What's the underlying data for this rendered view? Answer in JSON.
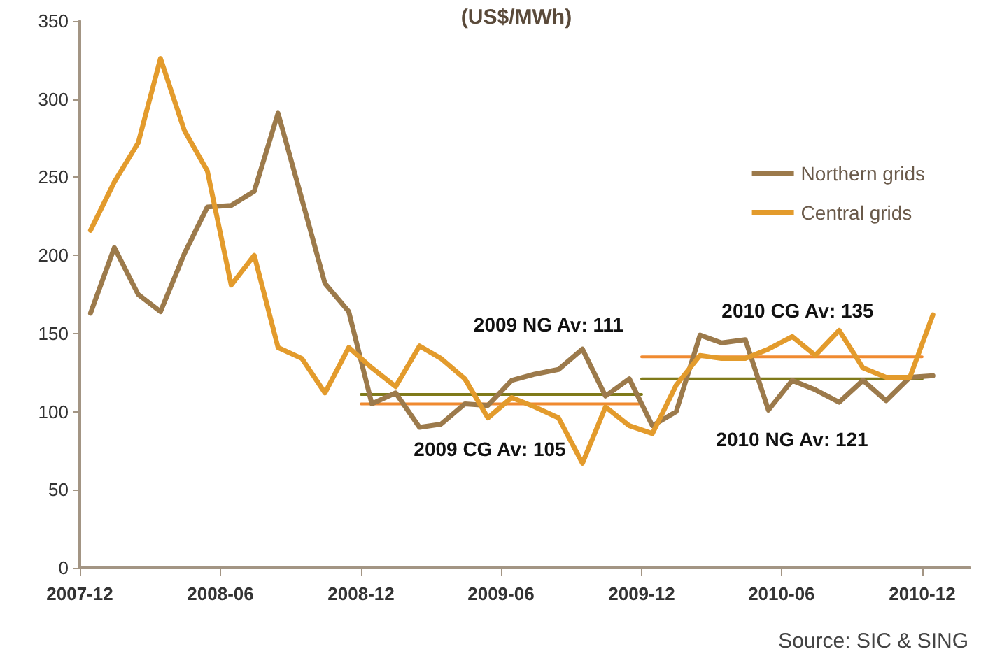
{
  "chart_data": {
    "type": "line",
    "title": "(US$/MWh)",
    "x": [
      "2007-12-15",
      "2008-01-15",
      "2008-02-15",
      "2008-03-15",
      "2008-04-15",
      "2008-05-15",
      "2008-06-15",
      "2008-07-15",
      "2008-08-15",
      "2008-09-15",
      "2008-10-15",
      "2008-11-15",
      "2008-12-15",
      "2009-01-15",
      "2009-02-15",
      "2009-03-15",
      "2009-04-15",
      "2009-05-15",
      "2009-06-15",
      "2009-07-15",
      "2009-08-15",
      "2009-09-15",
      "2009-10-15",
      "2009-11-15",
      "2009-12-15",
      "2010-01-15",
      "2010-02-15",
      "2010-03-15",
      "2010-04-15",
      "2010-05-15",
      "2010-06-15",
      "2010-07-15",
      "2010-08-15",
      "2010-09-15",
      "2010-10-15",
      "2010-11-15",
      "2010-12-15"
    ],
    "series": [
      {
        "name": "Northern grids",
        "color": "#9c7a4b",
        "values": [
          163,
          205,
          175,
          164,
          201,
          231,
          232,
          241,
          291,
          236,
          182,
          164,
          105,
          112,
          90,
          92,
          105,
          104,
          120,
          124,
          127,
          140,
          110,
          121,
          91,
          100,
          149,
          144,
          146,
          101,
          120,
          114,
          106,
          120,
          107,
          122,
          123
        ]
      },
      {
        "name": "Central grids",
        "color": "#e39b2c",
        "values": [
          216,
          247,
          272,
          326,
          280,
          254,
          181,
          200,
          141,
          134,
          112,
          141,
          128,
          116,
          142,
          134,
          121,
          96,
          109,
          103,
          96,
          67,
          103,
          91,
          86,
          117,
          136,
          134,
          134,
          140,
          148,
          136,
          152,
          128,
          122,
          122,
          162
        ]
      },
      {
        "type": "line",
        "color": "#7f7a1a",
        "x": [
          "2008-12-01",
          "2009-12-01"
        ],
        "values": [
          111,
          111
        ]
      },
      {
        "type": "line",
        "color": "#f08a30",
        "x": [
          "2008-12-01",
          "2009-12-01"
        ],
        "values": [
          105,
          105
        ]
      },
      {
        "type": "line",
        "color": "#f08a30",
        "x": [
          "2009-12-01",
          "2010-12-01"
        ],
        "values": [
          135,
          135
        ]
      },
      {
        "type": "line",
        "color": "#7f7a1a",
        "x": [
          "2009-12-01",
          "2010-12-01"
        ],
        "values": [
          121,
          121
        ]
      }
    ],
    "annotations": [
      "2009 NG Av: 111",
      "2009 CG Av: 105",
      "2010 CG Av: 135",
      "2010 NG Av: 121",
      "Source: SIC & SING"
    ],
    "xlim": [
      "2007-12-01",
      "2011-02-01"
    ],
    "xticks": [
      "2007-12",
      "2008-06",
      "2008-12",
      "2009-06",
      "2009-12",
      "2010-06",
      "2010-12"
    ],
    "ylim": [
      0,
      350
    ],
    "yticks": [
      0,
      50,
      100,
      150,
      200,
      250,
      300,
      350
    ],
    "grid": false,
    "legend": "right",
    "marker": "none",
    "line_style": "solid"
  }
}
